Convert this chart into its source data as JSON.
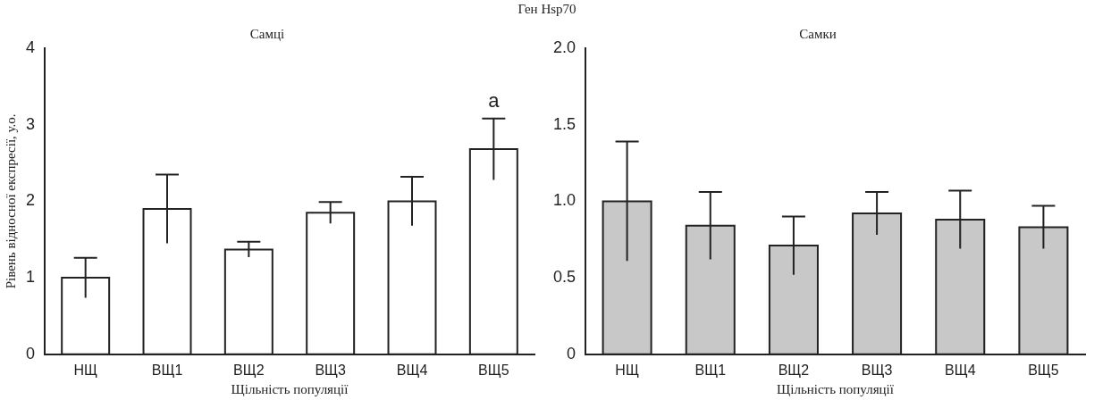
{
  "chart_data": [
    {
      "type": "bar",
      "title": "Самці",
      "annotations": [
        "Ген Hsp70",
        "a"
      ],
      "xlabel": "Щільність популяції",
      "ylabel": "Рівень відносної експресії, у.о.",
      "categories": [
        "НЩ",
        "ВЩ1",
        "ВЩ2",
        "ВЩ3",
        "ВЩ4",
        "ВЩ5"
      ],
      "series": [
        {
          "color": "#ffffff",
          "values": [
            1.0,
            1.9,
            1.37,
            1.85,
            2.0,
            2.68
          ],
          "errors": [
            0.26,
            0.45,
            0.1,
            0.14,
            0.32,
            0.4
          ]
        }
      ],
      "ylim": [
        0,
        4
      ],
      "yticks": [
        0,
        1,
        2,
        3,
        4
      ],
      "grid": false,
      "legend": false
    },
    {
      "type": "bar",
      "title": "Самки",
      "xlabel": "Щільність популяції",
      "categories": [
        "НЩ",
        "ВЩ1",
        "ВЩ2",
        "ВЩ3",
        "ВЩ4",
        "ВЩ5"
      ],
      "series": [
        {
          "color": "#c8c8c8",
          "values": [
            1.0,
            0.84,
            0.71,
            0.92,
            0.88,
            0.83
          ],
          "errors": [
            0.39,
            0.22,
            0.19,
            0.14,
            0.19,
            0.14
          ]
        }
      ],
      "ylim": [
        0,
        2
      ],
      "yticks": [
        0,
        0.5,
        {
          "value": 1,
          "label": "1.0"
        },
        1.5,
        {
          "value": 2,
          "label": "2.0"
        }
      ],
      "grid": false,
      "legend": false
    }
  ]
}
